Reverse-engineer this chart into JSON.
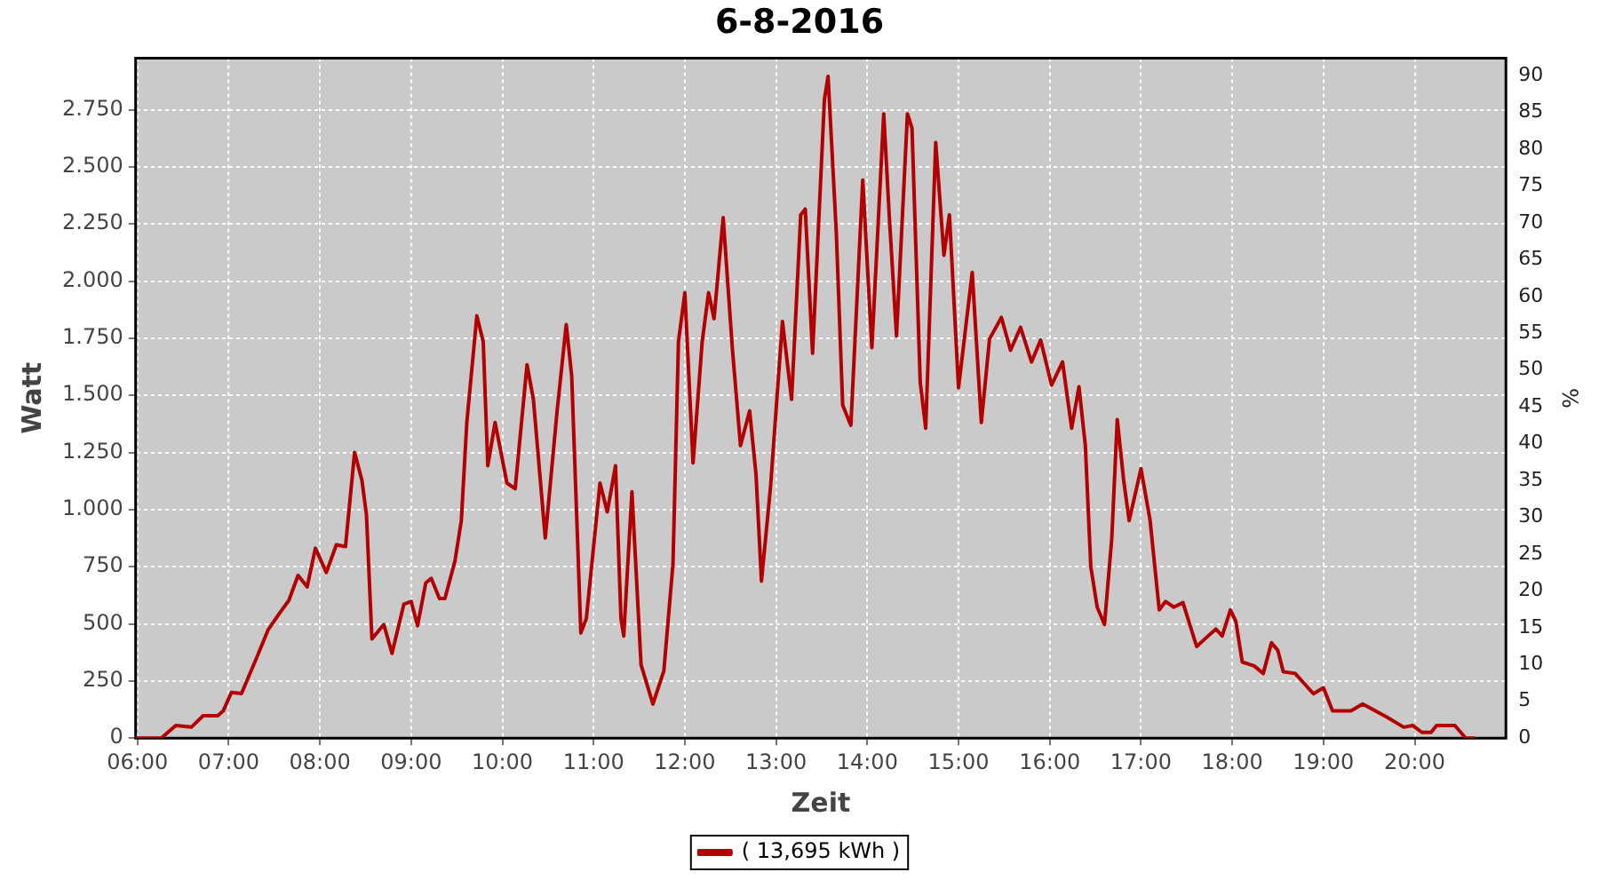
{
  "chart_data": {
    "type": "line",
    "title": "6-8-2016",
    "xlabel": "Zeit",
    "ylabel": "Watt",
    "y2label": "%",
    "x": [
      5.98,
      6.26,
      6.42,
      6.59,
      6.72,
      6.88,
      6.94,
      7.03,
      7.14,
      7.3,
      7.43,
      7.56,
      7.66,
      7.76,
      7.86,
      7.95,
      8.07,
      8.18,
      8.28,
      8.38,
      8.46,
      8.51,
      8.57,
      8.7,
      8.79,
      8.92,
      9.0,
      9.07,
      9.16,
      9.22,
      9.31,
      9.37,
      9.48,
      9.55,
      9.61,
      9.72,
      9.79,
      9.84,
      9.92,
      10.05,
      10.14,
      10.27,
      10.34,
      10.47,
      10.6,
      10.7,
      10.76,
      10.86,
      10.92,
      11.07,
      11.15,
      11.24,
      11.3,
      11.33,
      11.42,
      11.52,
      11.65,
      11.77,
      11.87,
      11.93,
      12.0,
      12.09,
      12.19,
      12.26,
      12.32,
      12.42,
      12.52,
      12.61,
      12.71,
      12.78,
      12.84,
      12.94,
      13.07,
      13.17,
      13.27,
      13.32,
      13.4,
      13.53,
      13.57,
      13.66,
      13.73,
      13.82,
      13.95,
      14.05,
      14.18,
      14.24,
      14.32,
      14.44,
      14.49,
      14.58,
      14.64,
      14.75,
      14.84,
      14.9,
      15.0,
      15.15,
      15.25,
      15.34,
      15.47,
      15.57,
      15.68,
      15.8,
      15.9,
      16.02,
      16.14,
      16.24,
      16.32,
      16.39,
      16.45,
      16.52,
      16.6,
      16.68,
      16.74,
      16.81,
      16.87,
      17.0,
      17.1,
      17.2,
      17.27,
      17.36,
      17.46,
      17.61,
      17.75,
      17.82,
      17.89,
      17.98,
      18.04,
      18.11,
      18.24,
      18.34,
      18.43,
      18.5,
      18.56,
      18.69,
      18.89,
      19.0,
      19.1,
      19.3,
      19.43,
      19.69,
      19.88,
      19.98,
      20.08,
      20.18,
      20.24,
      20.44,
      20.56,
      20.66
    ],
    "series": [
      {
        "name": "( 13,695 kWh )",
        "color": "#b30000",
        "values": [
          0,
          0,
          55,
          48,
          98,
          98,
          119,
          200,
          195,
          346,
          472,
          548,
          603,
          712,
          662,
          831,
          725,
          846,
          838,
          1250,
          1129,
          977,
          434,
          497,
          371,
          586,
          598,
          492,
          679,
          699,
          611,
          611,
          775,
          952,
          1381,
          1848,
          1735,
          1192,
          1381,
          1116,
          1091,
          1634,
          1482,
          876,
          1432,
          1810,
          1583,
          460,
          523,
          1116,
          990,
          1192,
          523,
          447,
          1078,
          321,
          149,
          295,
          763,
          1735,
          1949,
          1204,
          1735,
          1949,
          1836,
          2278,
          1709,
          1280,
          1432,
          1154,
          687,
          1103,
          1823,
          1482,
          2290,
          2315,
          1684,
          2795,
          2896,
          2214,
          1457,
          1369,
          2442,
          1709,
          2732,
          2290,
          1760,
          2732,
          2669,
          1558,
          1356,
          2606,
          2113,
          2290,
          1533,
          2038,
          1381,
          1747,
          1841,
          1697,
          1798,
          1646,
          1742,
          1545,
          1646,
          1356,
          1538,
          1280,
          750,
          573,
          497,
          876,
          1394,
          1129,
          952,
          1179,
          952,
          561,
          598,
          573,
          593,
          401,
          452,
          477,
          447,
          561,
          510,
          333,
          316,
          283,
          417,
          384,
          290,
          283,
          194,
          220,
          119,
          119,
          149,
          93,
          48,
          55,
          25,
          25,
          55,
          55,
          0,
          0
        ]
      }
    ],
    "xlim": [
      5.98,
      21.0
    ],
    "xticks": [
      {
        "value": 6,
        "label": "06:00"
      },
      {
        "value": 7,
        "label": "07:00"
      },
      {
        "value": 8,
        "label": "08:00"
      },
      {
        "value": 9,
        "label": "09:00"
      },
      {
        "value": 10,
        "label": "10:00"
      },
      {
        "value": 11,
        "label": "11:00"
      },
      {
        "value": 12,
        "label": "12:00"
      },
      {
        "value": 13,
        "label": "13:00"
      },
      {
        "value": 14,
        "label": "14:00"
      },
      {
        "value": 15,
        "label": "15:00"
      },
      {
        "value": 16,
        "label": "16:00"
      },
      {
        "value": 17,
        "label": "17:00"
      },
      {
        "value": 18,
        "label": "18:00"
      },
      {
        "value": 19,
        "label": "19:00"
      },
      {
        "value": 20,
        "label": "20:00"
      }
    ],
    "ylim": [
      0,
      2975
    ],
    "yticks": [
      0,
      250,
      500,
      750,
      {
        "value": 1000,
        "label": "1.000"
      },
      {
        "value": 1250,
        "label": "1.250"
      },
      {
        "value": 1500,
        "label": "1.500"
      },
      {
        "value": 1750,
        "label": "1.750"
      },
      {
        "value": 2000,
        "label": "2.000"
      },
      {
        "value": 2250,
        "label": "2.250"
      },
      {
        "value": 2500,
        "label": "2.500"
      },
      {
        "value": 2750,
        "label": "2.750"
      }
    ],
    "y2lim": [
      0,
      92.35
    ],
    "y2ticks": [
      0,
      5,
      10,
      15,
      20,
      25,
      30,
      35,
      40,
      45,
      50,
      55,
      60,
      65,
      70,
      75,
      80,
      85,
      90
    ],
    "grid": true,
    "legend": "bottom",
    "marker": "none",
    "line_style": "solid"
  }
}
